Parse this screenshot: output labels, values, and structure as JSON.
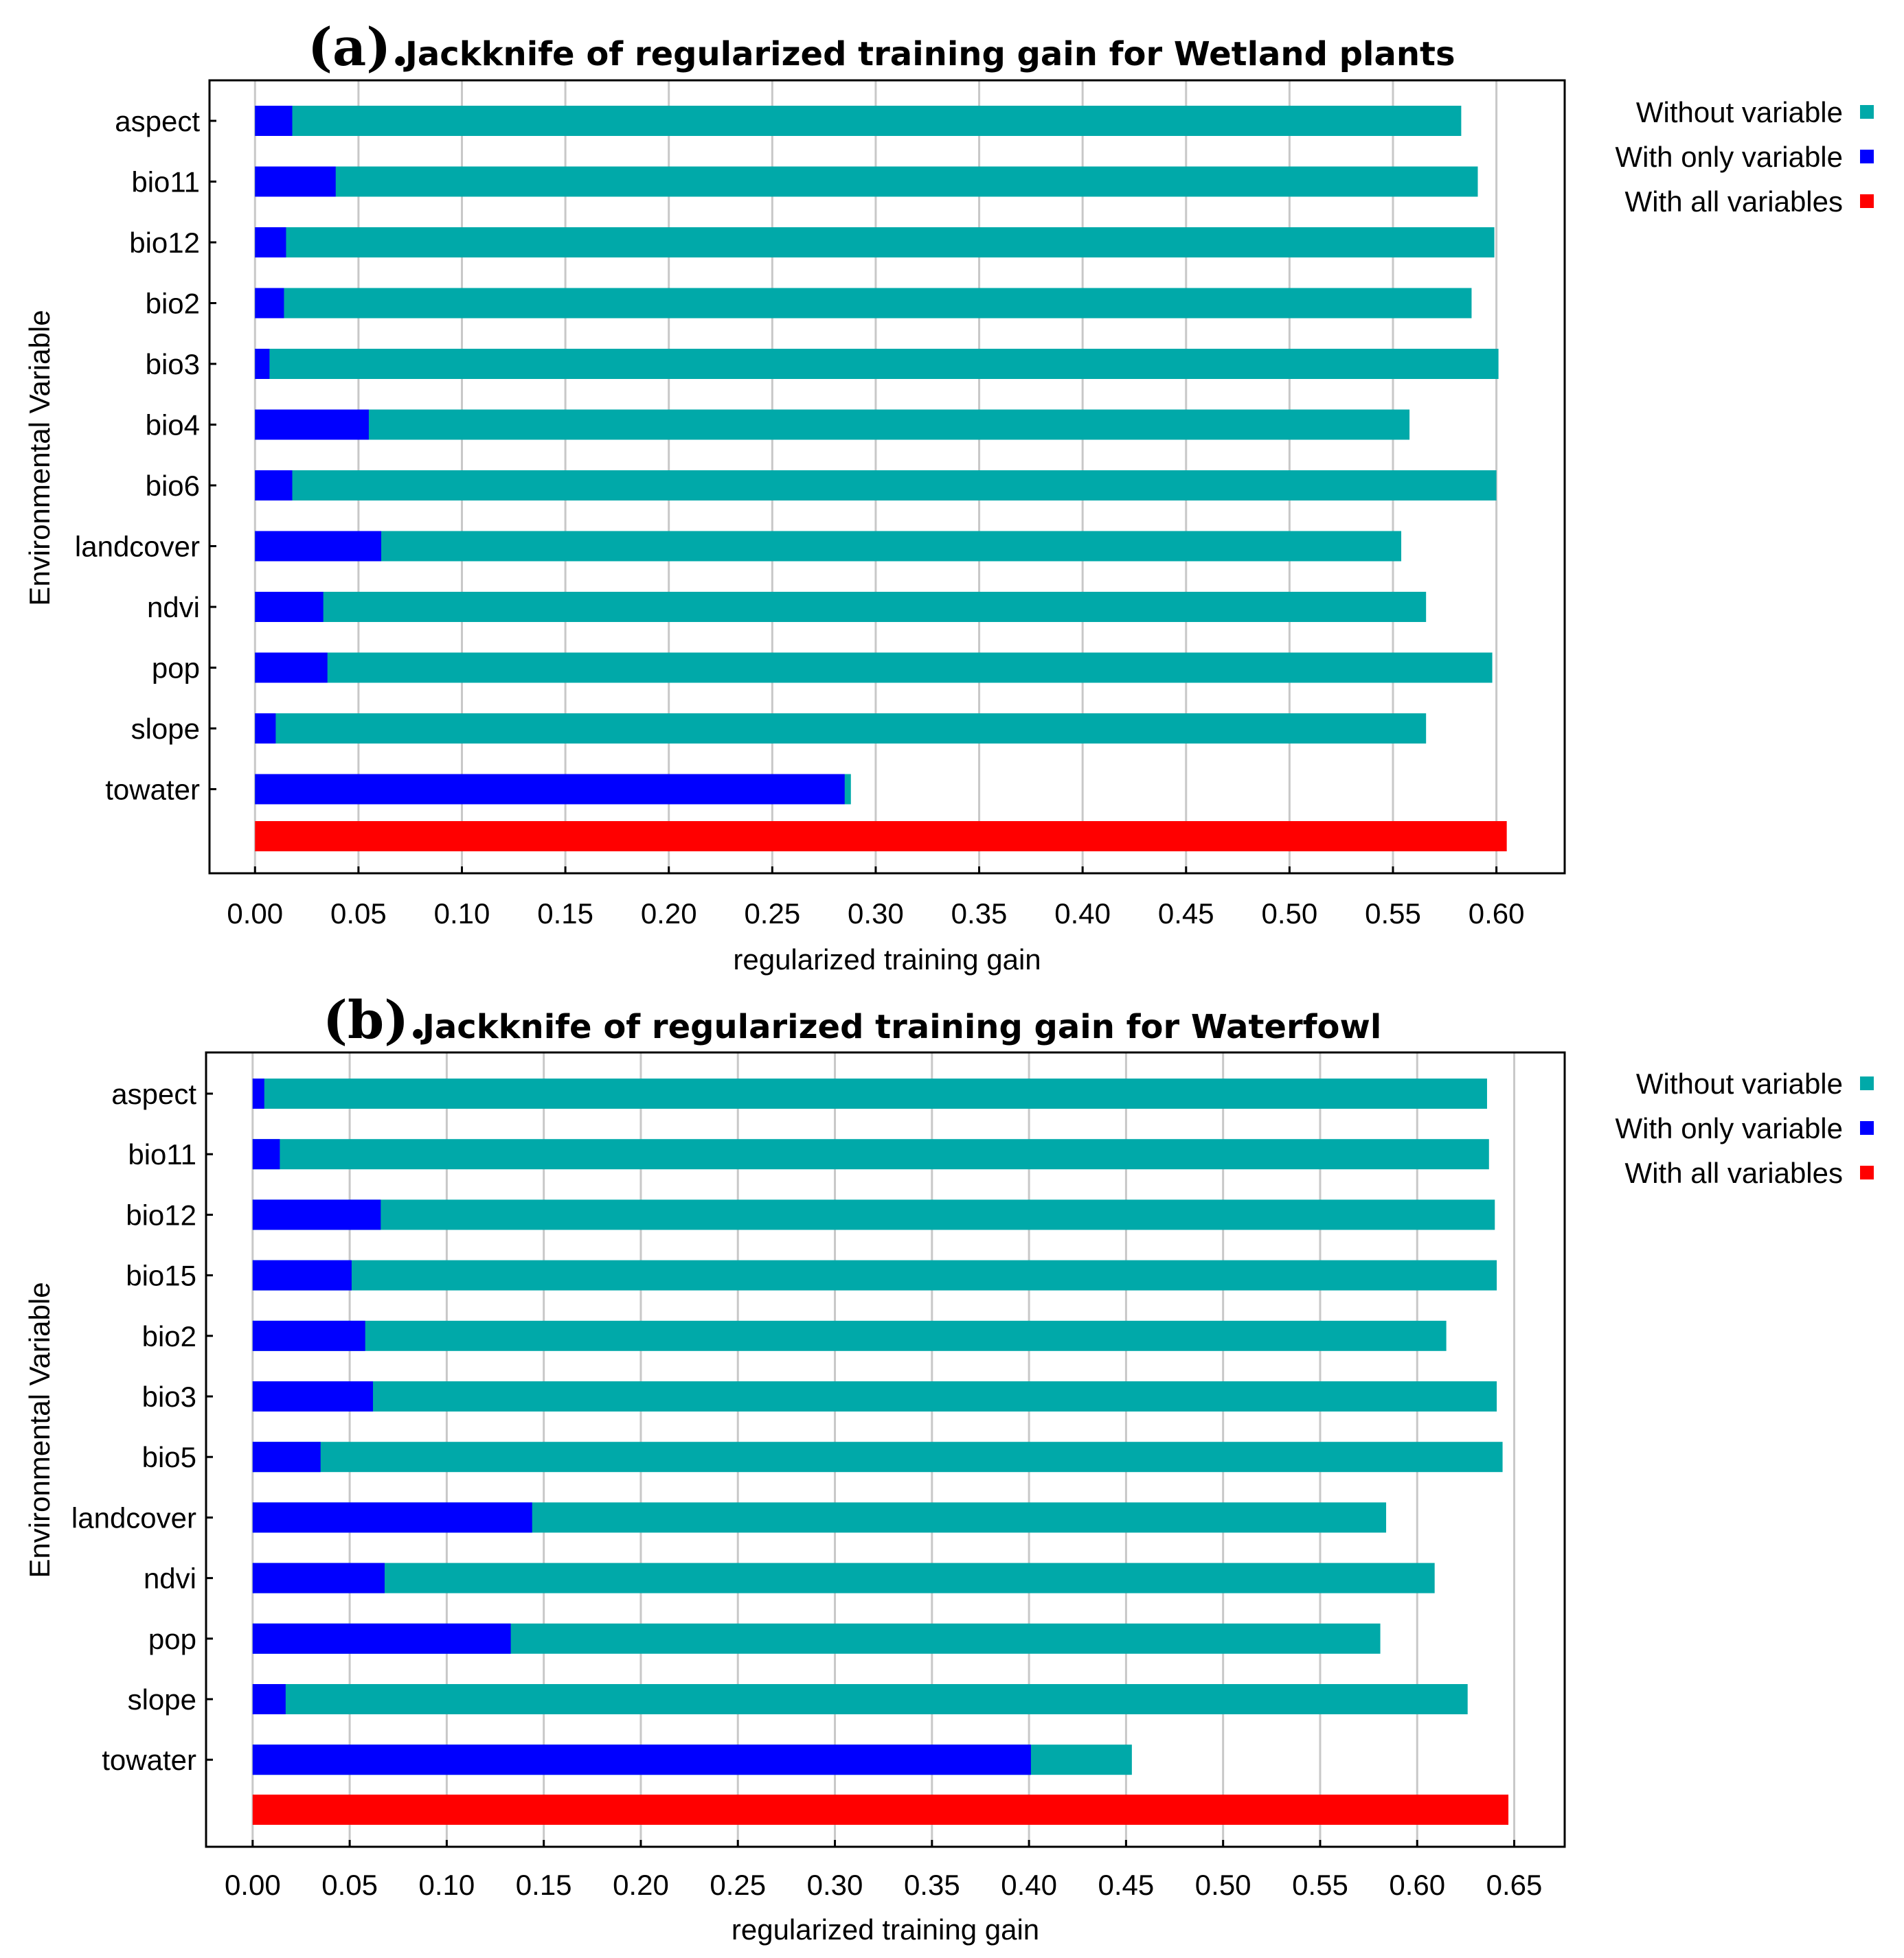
{
  "colors": {
    "without": "#00A9A9",
    "only": "#0000FF",
    "all": "#FF0000",
    "grid": "#C8C8C8",
    "frame": "#000000"
  },
  "chart_data": [
    {
      "type": "bar",
      "orientation": "horizontal",
      "panel_label": "(a).",
      "title": "Jackknife of regularized training gain for Wetland plants",
      "xlabel": "regularized training gain",
      "ylabel": "Environmental Variable",
      "xlim": [
        -0.022,
        0.633
      ],
      "xticks": [
        0.0,
        0.05,
        0.1,
        0.15,
        0.2,
        0.25,
        0.3,
        0.35,
        0.4,
        0.45,
        0.5,
        0.55,
        0.6
      ],
      "xtick_labels": [
        "0.00",
        "0.05",
        "0.10",
        "0.15",
        "0.20",
        "0.25",
        "0.30",
        "0.35",
        "0.40",
        "0.45",
        "0.50",
        "0.55",
        "0.60"
      ],
      "categories": [
        "aspect",
        "bio11",
        "bio12",
        "bio2",
        "bio3",
        "bio4",
        "bio6",
        "landcover",
        "ndvi",
        "pop",
        "slope",
        "towater"
      ],
      "series": [
        {
          "name": "Without variable",
          "key": "without",
          "values": [
            0.583,
            0.591,
            0.599,
            0.588,
            0.601,
            0.558,
            0.6,
            0.554,
            0.566,
            0.598,
            0.566,
            0.288
          ]
        },
        {
          "name": "With only variable",
          "key": "only",
          "values": [
            0.018,
            0.039,
            0.015,
            0.014,
            0.007,
            0.055,
            0.018,
            0.061,
            0.033,
            0.035,
            0.01,
            0.285
          ]
        }
      ],
      "all_variables": {
        "name": "With all variables",
        "key": "all",
        "value": 0.605
      },
      "legend": {
        "position": "top-right-outside",
        "entries": [
          {
            "label": "Without variable",
            "key": "without"
          },
          {
            "label": "With only variable",
            "key": "only"
          },
          {
            "label": "With all variables",
            "key": "all"
          }
        ]
      },
      "grid": true
    },
    {
      "type": "bar",
      "orientation": "horizontal",
      "panel_label": "(b).",
      "title": "Jackknife of regularized training gain for Waterfowl",
      "xlabel": "regularized training gain",
      "ylabel": "Environmental Variable",
      "xlim": [
        -0.024,
        0.676
      ],
      "xticks": [
        0.0,
        0.05,
        0.1,
        0.15,
        0.2,
        0.25,
        0.3,
        0.35,
        0.4,
        0.45,
        0.5,
        0.55,
        0.6,
        0.65
      ],
      "xtick_labels": [
        "0.00",
        "0.05",
        "0.10",
        "0.15",
        "0.20",
        "0.25",
        "0.30",
        "0.35",
        "0.40",
        "0.45",
        "0.50",
        "0.55",
        "0.60",
        "0.65"
      ],
      "categories": [
        "aspect",
        "bio11",
        "bio12",
        "bio15",
        "bio2",
        "bio3",
        "bio5",
        "landcover",
        "ndvi",
        "pop",
        "slope",
        "towater"
      ],
      "series": [
        {
          "name": "Without variable",
          "key": "without",
          "values": [
            0.636,
            0.637,
            0.64,
            0.641,
            0.615,
            0.641,
            0.644,
            0.584,
            0.609,
            0.581,
            0.626,
            0.453
          ]
        },
        {
          "name": "With only variable",
          "key": "only",
          "values": [
            0.006,
            0.014,
            0.066,
            0.051,
            0.058,
            0.062,
            0.035,
            0.144,
            0.068,
            0.133,
            0.017,
            0.401
          ]
        }
      ],
      "all_variables": {
        "name": "With all variables",
        "key": "all",
        "value": 0.647
      },
      "legend": {
        "position": "top-right-outside",
        "entries": [
          {
            "label": "Without variable",
            "key": "without"
          },
          {
            "label": "With only variable",
            "key": "only"
          },
          {
            "label": "With all variables",
            "key": "all"
          }
        ]
      },
      "grid": true
    }
  ]
}
